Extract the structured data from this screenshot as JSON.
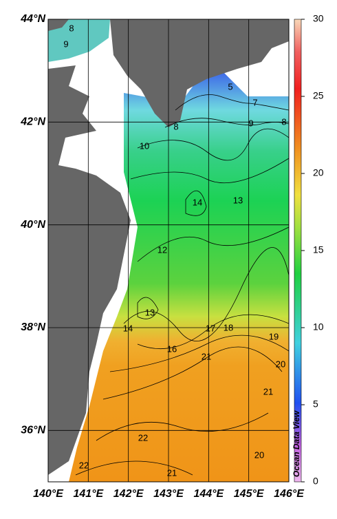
{
  "map": {
    "xlim": [
      140,
      146
    ],
    "ylim": [
      35,
      44
    ],
    "xticks": [
      {
        "value": 140,
        "label": "140°E"
      },
      {
        "value": 141,
        "label": "141°E"
      },
      {
        "value": 142,
        "label": "142°E"
      },
      {
        "value": 143,
        "label": "143°E"
      },
      {
        "value": 144,
        "label": "144°E"
      },
      {
        "value": 145,
        "label": "145°E"
      },
      {
        "value": 146,
        "label": "146°E"
      }
    ],
    "yticks": [
      {
        "value": 36,
        "label": "36°N"
      },
      {
        "value": 38,
        "label": "38°N"
      },
      {
        "value": 40,
        "label": "40°N"
      },
      {
        "value": 42,
        "label": "42°N"
      },
      {
        "value": 44,
        "label": "44°N"
      }
    ],
    "contour_labels": [
      "8",
      "9",
      "5",
      "7",
      "8",
      "8",
      "9",
      "10",
      "14",
      "13",
      "12",
      "13",
      "14",
      "17",
      "18",
      "19",
      "16",
      "21",
      "20",
      "21",
      "22",
      "20",
      "22",
      "21"
    ]
  },
  "colorbar": {
    "range": [
      0,
      30
    ],
    "ticks": [
      0,
      5,
      10,
      15,
      20,
      25,
      30
    ]
  },
  "watermark": "Ocean Data View"
}
